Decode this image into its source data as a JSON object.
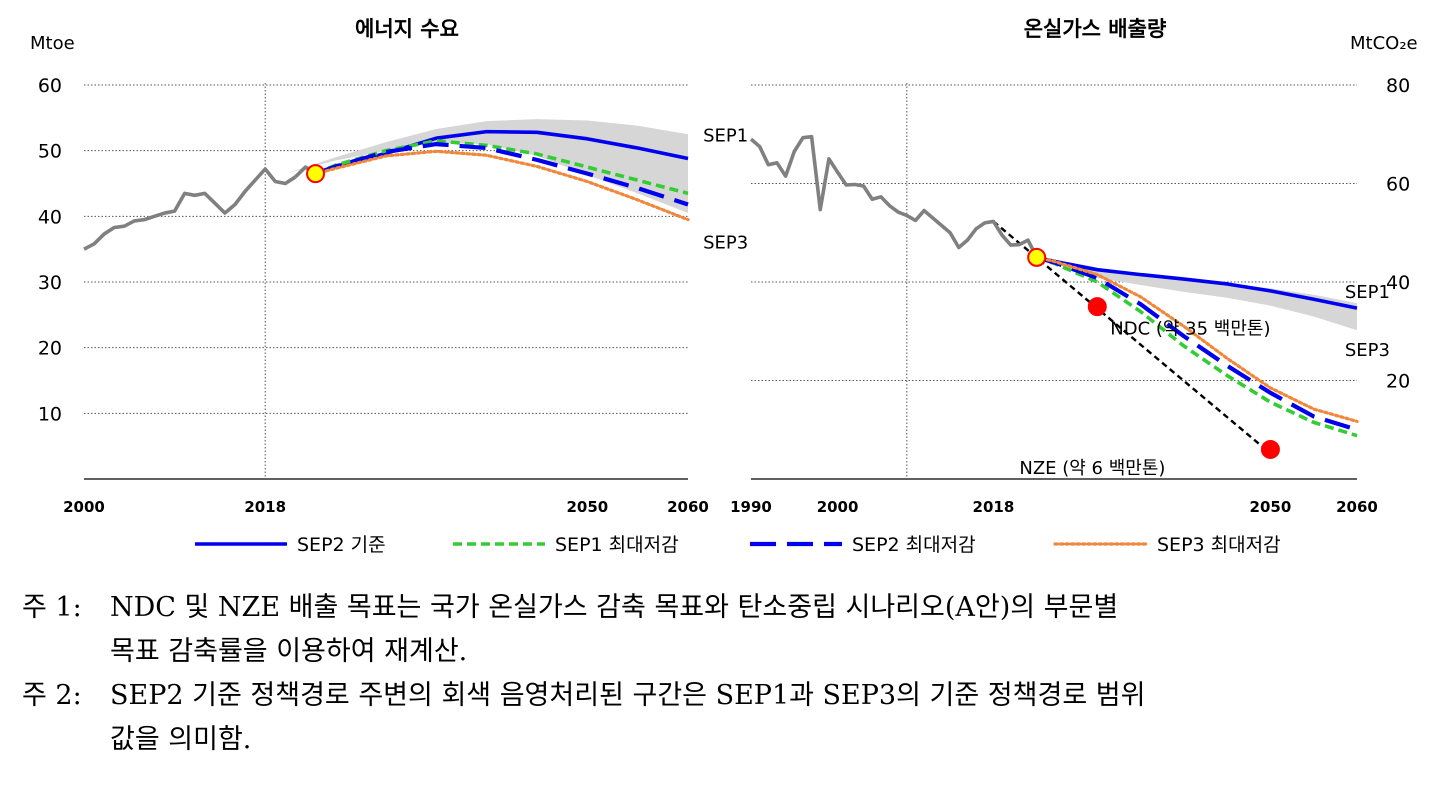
{
  "chart_data": [
    {
      "type": "line",
      "title": "에너지 수요",
      "ylabel": "Mtoe",
      "xlim": [
        2000,
        2060
      ],
      "ylim": [
        0,
        60
      ],
      "yticks": [
        10,
        20,
        30,
        40,
        50,
        60
      ],
      "xticks": [
        2000,
        2018,
        2050,
        2060
      ],
      "grid": "horizontal-dotted",
      "reference_year": 2018,
      "band": {
        "x": [
          2020,
          2025,
          2030,
          2035,
          2040,
          2045,
          2050,
          2055,
          2060
        ],
        "upper": [
          46.5,
          49,
          51.3,
          53.3,
          54.5,
          54.8,
          54.6,
          53.8,
          52.5
        ],
        "lower": [
          46.5,
          48.5,
          50,
          51.2,
          51,
          49.2,
          46.3,
          43.5,
          40.5
        ]
      },
      "series": [
        {
          "name": "",
          "color": "#808080",
          "style": "solid",
          "x": [
            2000,
            2001,
            2002,
            2003,
            2004,
            2005,
            2006,
            2007,
            2008,
            2009,
            2010,
            2011,
            2012,
            2013,
            2014,
            2015,
            2016,
            2017,
            2018,
            2019,
            2020,
            2021
          ],
          "y": [
            35,
            35.8,
            37.3,
            38.3,
            38.5,
            39.3,
            39.5,
            40,
            40.5,
            40.8,
            43.5,
            43.2,
            43.5,
            42,
            40.5,
            41.8,
            43.8,
            45.5,
            47.2,
            45.3,
            45,
            46
          ]
        },
        {
          "name": "",
          "color": "#808080",
          "style": "solid",
          "x": [
            2021,
            2022,
            2023
          ],
          "y": [
            46,
            47.5,
            46.5
          ]
        },
        {
          "name": "SEP2 기준",
          "color": "#0000ee",
          "style": "solid",
          "x": [
            2023,
            2025,
            2030,
            2035,
            2040,
            2045,
            2050,
            2055,
            2060
          ],
          "y": [
            46.5,
            47.6,
            49.6,
            51.9,
            52.9,
            52.8,
            51.8,
            50.4,
            48.8
          ]
        },
        {
          "name": "SEP1 최대저감",
          "color": "#33cc33",
          "style": "dashed",
          "x": [
            2023,
            2025,
            2030,
            2035,
            2040,
            2045,
            2050,
            2055,
            2060
          ],
          "y": [
            46.5,
            47.8,
            50,
            51.5,
            50.8,
            49.5,
            47.5,
            45.5,
            43.5
          ]
        },
        {
          "name": "SEP2 최대저감",
          "color": "#0000ee",
          "style": "longdash",
          "x": [
            2023,
            2025,
            2030,
            2035,
            2040,
            2045,
            2050,
            2055,
            2060
          ],
          "y": [
            46.5,
            47.6,
            49.8,
            51,
            50.4,
            48.6,
            46.5,
            44.3,
            41.8
          ]
        },
        {
          "name": "SEP3 최대저감",
          "color": "#f0883c",
          "style": "dotted",
          "x": [
            2023,
            2025,
            2030,
            2035,
            2040,
            2045,
            2050,
            2055,
            2060
          ],
          "y": [
            46.5,
            47.3,
            49.2,
            49.9,
            49.3,
            47.6,
            45.3,
            42.5,
            39.5
          ]
        }
      ],
      "markers": [
        {
          "x": 2023,
          "y": 46.5,
          "color": "#ffff00",
          "edge": "#ff0000"
        }
      ],
      "annotations": [
        {
          "text": "SEP1",
          "x": 2061.5,
          "y": 52.5
        },
        {
          "text": "SEP3",
          "x": 2061.5,
          "y": 36.2
        }
      ]
    },
    {
      "type": "line",
      "title": "온실가스 배출량",
      "ylabel": "MtCO₂e",
      "xlim": [
        1990,
        2060
      ],
      "ylim": [
        0,
        80
      ],
      "yticks": [
        20,
        40,
        60,
        80
      ],
      "xticks": [
        1990,
        2000,
        2018,
        2050,
        2060
      ],
      "grid": "horizontal-dotted",
      "reference_year": 2008,
      "band": {
        "x": [
          2023,
          2030,
          2035,
          2040,
          2045,
          2050,
          2055,
          2060
        ],
        "upper": [
          45,
          42.5,
          41.5,
          40.6,
          39.7,
          38.7,
          37.4,
          35.7
        ],
        "lower": [
          45,
          40.8,
          39.4,
          38,
          36.8,
          35.2,
          33,
          30.2
        ]
      },
      "series": [
        {
          "name": "",
          "color": "#808080",
          "style": "solid",
          "x": [
            1990,
            1991,
            1992,
            1993,
            1994,
            1995,
            1996,
            1997,
            1998,
            1999,
            2000,
            2001,
            2002,
            2003,
            2004,
            2005,
            2006,
            2007,
            2008,
            2009,
            2010,
            2011,
            2012,
            2013,
            2014,
            2015,
            2016,
            2017,
            2018,
            2019,
            2020,
            2021,
            2022,
            2023
          ],
          "y": [
            69,
            67.5,
            63.8,
            64.2,
            61.5,
            66.5,
            69.3,
            69.5,
            54.7,
            65,
            62.3,
            59.7,
            59.8,
            59.5,
            56.8,
            57.3,
            55.5,
            54.2,
            53.5,
            52.5,
            54.5,
            53,
            51.5,
            50,
            47,
            48.5,
            50.8,
            52,
            52.3,
            49.5,
            47.5,
            47.6,
            48.5,
            45
          ]
        },
        {
          "name": "SEP2 기준",
          "color": "#0000ee",
          "style": "solid",
          "x": [
            2023,
            2025,
            2030,
            2035,
            2040,
            2045,
            2050,
            2055,
            2060
          ],
          "y": [
            45,
            44.2,
            42.5,
            41.5,
            40.6,
            39.6,
            38.2,
            36.5,
            34.7
          ]
        },
        {
          "name": "SEP1 최대저감",
          "color": "#33cc33",
          "style": "dashed",
          "x": [
            2023,
            2025,
            2030,
            2035,
            2040,
            2045,
            2050,
            2055,
            2060
          ],
          "y": [
            45,
            43.8,
            40,
            34,
            27,
            21,
            15.6,
            11.5,
            8.8
          ]
        },
        {
          "name": "SEP2 최대저감",
          "color": "#0000ee",
          "style": "longdash",
          "x": [
            2023,
            2025,
            2030,
            2035,
            2040,
            2045,
            2050,
            2055,
            2060
          ],
          "y": [
            45,
            44,
            40.8,
            35.5,
            29,
            23,
            17.5,
            12.7,
            10
          ]
        },
        {
          "name": "SEP3 최대저감",
          "color": "#f0883c",
          "style": "dotted",
          "x": [
            2023,
            2025,
            2030,
            2035,
            2040,
            2045,
            2050,
            2055,
            2060
          ],
          "y": [
            45,
            44.2,
            41.5,
            37,
            31,
            24.5,
            18.5,
            14.2,
            11.7
          ]
        }
      ],
      "reference_lines": [
        {
          "x": [
            2018,
            2050
          ],
          "y": [
            52.3,
            5.2
          ],
          "color": "#000000",
          "style": "dashed"
        }
      ],
      "markers": [
        {
          "x": 2023,
          "y": 45,
          "color": "#ffff00",
          "edge": "#ff0000"
        },
        {
          "x": 2030,
          "y": 35,
          "color": "#ff0000",
          "edge": "#ff0000"
        },
        {
          "x": 2050,
          "y": 6,
          "color": "#ff0000",
          "edge": "#ff0000"
        }
      ],
      "annotations": [
        {
          "text": "NDC (약 35 백만톤)",
          "x": 2031.5,
          "y": 30.8
        },
        {
          "text": "NZE (약 6 백만톤)",
          "x": 2021,
          "y": 2.4
        },
        {
          "text": "SEP1",
          "x": 2058.6,
          "y": 38.2
        },
        {
          "text": "SEP3",
          "x": 2058.6,
          "y": 26.4
        }
      ]
    }
  ],
  "legend": {
    "placement": "bottom",
    "items": [
      {
        "label": "SEP2 기준",
        "color": "#0000ee",
        "style": "solid"
      },
      {
        "label": "SEP1 최대저감",
        "color": "#33cc33",
        "style": "dashed"
      },
      {
        "label": "SEP2 최대저감",
        "color": "#0000ee",
        "style": "longdash"
      },
      {
        "label": "SEP3 최대저감",
        "color": "#f0883c",
        "style": "dotted"
      }
    ]
  },
  "notes": [
    {
      "lead": "주 1:",
      "line1": "NDC 및 NZE 배출 목표는 국가 온실가스 감축 목표와 탄소중립 시나리오(A안)의 부문별",
      "line2": "목표 감축률을 이용하여 재계산."
    },
    {
      "lead": "주 2:",
      "line1": "SEP2 기준 정책경로 주변의 회색 음영처리된 구간은 SEP1과 SEP3의 기준 정책경로 범위",
      "line2": "값을 의미함."
    }
  ]
}
